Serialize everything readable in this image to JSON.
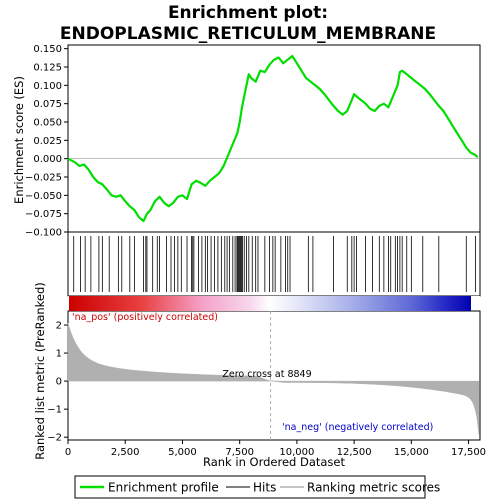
{
  "chart_data": {
    "type": "line",
    "title_line1": "Enrichment plot:",
    "title_line2": "ENDOPLASMIC_RETICULUM_MEMBRANE",
    "xlabel": "Rank in Ordered Dataset",
    "ylabel_top": "Enrichment score (ES)",
    "ylabel_bottom": "Ranked list metric (PreRanked)",
    "xlim": [
      0,
      18000
    ],
    "x_ticks": [
      0,
      2500,
      5000,
      7500,
      10000,
      12500,
      15000,
      17500
    ],
    "x_tick_labels": [
      "0",
      "2,500",
      "5,000",
      "7,500",
      "10,000",
      "12,500",
      "15,000",
      "17,500"
    ],
    "es_ylim": [
      -0.1,
      0.155
    ],
    "es_ticks": [
      -0.1,
      -0.075,
      -0.05,
      -0.025,
      0.0,
      0.025,
      0.05,
      0.075,
      0.1,
      0.125,
      0.15
    ],
    "es_tick_labels": [
      "−0.100",
      "−0.075",
      "−0.050",
      "−0.025",
      "0.000",
      "0.025",
      "0.050",
      "0.075",
      "0.100",
      "0.125",
      "0.150"
    ],
    "metric_ylim": [
      -2.1,
      2.5
    ],
    "metric_ticks": [
      -2,
      -1,
      0,
      1,
      2
    ],
    "metric_tick_labels": [
      "−2",
      "−1",
      "0",
      "1",
      "2"
    ],
    "enrichment_profile": {
      "x": [
        0,
        300,
        500,
        700,
        900,
        1100,
        1300,
        1500,
        1700,
        1900,
        2100,
        2300,
        2500,
        2700,
        2900,
        3100,
        3300,
        3450,
        3600,
        3800,
        4000,
        4200,
        4400,
        4600,
        4800,
        5000,
        5200,
        5400,
        5600,
        5800,
        6000,
        6200,
        6400,
        6600,
        6800,
        7000,
        7200,
        7400,
        7500,
        7600,
        7700,
        7800,
        7900,
        8000,
        8200,
        8400,
        8600,
        8800,
        9000,
        9200,
        9400,
        9600,
        9800,
        10000,
        10200,
        10400,
        10600,
        10800,
        11000,
        11200,
        11400,
        11600,
        11800,
        12000,
        12200,
        12400,
        12500,
        12600,
        12800,
        13000,
        13200,
        13400,
        13600,
        13800,
        14000,
        14200,
        14400,
        14500,
        14600,
        14800,
        15000,
        15200,
        15400,
        15600,
        15800,
        16000,
        16200,
        16400,
        16600,
        16800,
        17000,
        17200,
        17400,
        17600,
        17800,
        17900
      ],
      "y": [
        0.0,
        -0.005,
        -0.01,
        -0.008,
        -0.015,
        -0.025,
        -0.032,
        -0.035,
        -0.042,
        -0.05,
        -0.052,
        -0.05,
        -0.058,
        -0.065,
        -0.07,
        -0.08,
        -0.085,
        -0.075,
        -0.07,
        -0.058,
        -0.052,
        -0.06,
        -0.065,
        -0.06,
        -0.052,
        -0.05,
        -0.055,
        -0.035,
        -0.03,
        -0.033,
        -0.037,
        -0.03,
        -0.025,
        -0.02,
        -0.01,
        0.005,
        0.02,
        0.035,
        0.05,
        0.07,
        0.085,
        0.1,
        0.115,
        0.11,
        0.105,
        0.12,
        0.118,
        0.128,
        0.135,
        0.138,
        0.13,
        0.135,
        0.14,
        0.13,
        0.12,
        0.11,
        0.105,
        0.1,
        0.095,
        0.088,
        0.08,
        0.072,
        0.065,
        0.06,
        0.065,
        0.08,
        0.088,
        0.085,
        0.08,
        0.075,
        0.068,
        0.065,
        0.072,
        0.075,
        0.07,
        0.085,
        0.1,
        0.118,
        0.12,
        0.115,
        0.11,
        0.105,
        0.1,
        0.095,
        0.088,
        0.08,
        0.072,
        0.065,
        0.055,
        0.045,
        0.035,
        0.025,
        0.015,
        0.008,
        0.005,
        0.002
      ]
    },
    "hits": [
      250,
      550,
      750,
      1000,
      1350,
      1500,
      1800,
      2200,
      2350,
      2700,
      2900,
      3300,
      3400,
      3450,
      3700,
      3900,
      4000,
      4300,
      4500,
      4650,
      4800,
      4950,
      5200,
      5400,
      5450,
      5500,
      5700,
      5850,
      6000,
      6100,
      6250,
      6400,
      6550,
      6700,
      6850,
      6950,
      7050,
      7200,
      7300,
      7380,
      7420,
      7460,
      7500,
      7540,
      7580,
      7620,
      7700,
      7800,
      7900,
      8050,
      8200,
      8300,
      8600,
      8800,
      8950,
      9050,
      9300,
      9500,
      9600,
      9700,
      10500,
      10700,
      11600,
      12200,
      12400,
      12500,
      12600,
      13000,
      13300,
      13600,
      13800,
      14000,
      14100,
      14300,
      14400,
      14500,
      14600,
      14800,
      15000,
      15500,
      16200,
      17400,
      17800
    ],
    "zero_cross_label": "Zero cross at 8849",
    "zero_cross_x": 8849,
    "pos_label": "'na_pos' (positively correlated)",
    "neg_label": "'na_neg' (negatively correlated)",
    "colors": {
      "profile": "#00dd00",
      "hits": "#000000",
      "metric_fill": "#b0b0b0",
      "pos_text": "#cc0000",
      "neg_text": "#0000cc",
      "zero_line": "#aaaaaa"
    },
    "legend": {
      "placement": "bottom",
      "entries": [
        "Enrichment profile",
        "Hits",
        "Ranking metric scores"
      ]
    }
  }
}
